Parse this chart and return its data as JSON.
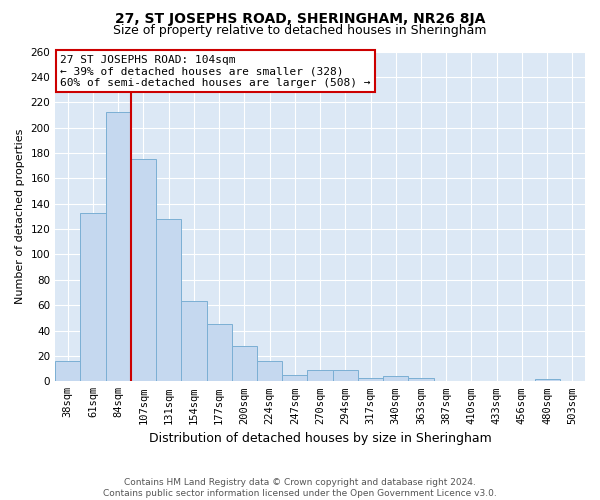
{
  "title": "27, ST JOSEPHS ROAD, SHERINGHAM, NR26 8JA",
  "subtitle": "Size of property relative to detached houses in Sheringham",
  "xlabel": "Distribution of detached houses by size in Sheringham",
  "ylabel": "Number of detached properties",
  "categories": [
    "38sqm",
    "61sqm",
    "84sqm",
    "107sqm",
    "131sqm",
    "154sqm",
    "177sqm",
    "200sqm",
    "224sqm",
    "247sqm",
    "270sqm",
    "294sqm",
    "317sqm",
    "340sqm",
    "363sqm",
    "387sqm",
    "410sqm",
    "433sqm",
    "456sqm",
    "480sqm",
    "503sqm"
  ],
  "values": [
    16,
    133,
    212,
    175,
    128,
    63,
    45,
    28,
    16,
    5,
    9,
    9,
    3,
    4,
    3,
    0,
    0,
    0,
    0,
    2,
    0
  ],
  "bar_color": "#c5d8ef",
  "bar_edge_color": "#7bafd4",
  "vline_x": 3.0,
  "vline_color": "#cc0000",
  "annotation_text": "27 ST JOSEPHS ROAD: 104sqm\n← 39% of detached houses are smaller (328)\n60% of semi-detached houses are larger (508) →",
  "annotation_box_color": "#ffffff",
  "annotation_box_edge": "#cc0000",
  "ylim": [
    0,
    260
  ],
  "yticks": [
    0,
    20,
    40,
    60,
    80,
    100,
    120,
    140,
    160,
    180,
    200,
    220,
    240,
    260
  ],
  "background_color": "#dce8f5",
  "grid_color": "#c0d0e8",
  "footer_line1": "Contains HM Land Registry data © Crown copyright and database right 2024.",
  "footer_line2": "Contains public sector information licensed under the Open Government Licence v3.0.",
  "title_fontsize": 10,
  "subtitle_fontsize": 9,
  "xlabel_fontsize": 9,
  "ylabel_fontsize": 8,
  "tick_fontsize": 7.5,
  "annotation_fontsize": 8,
  "footer_fontsize": 6.5
}
